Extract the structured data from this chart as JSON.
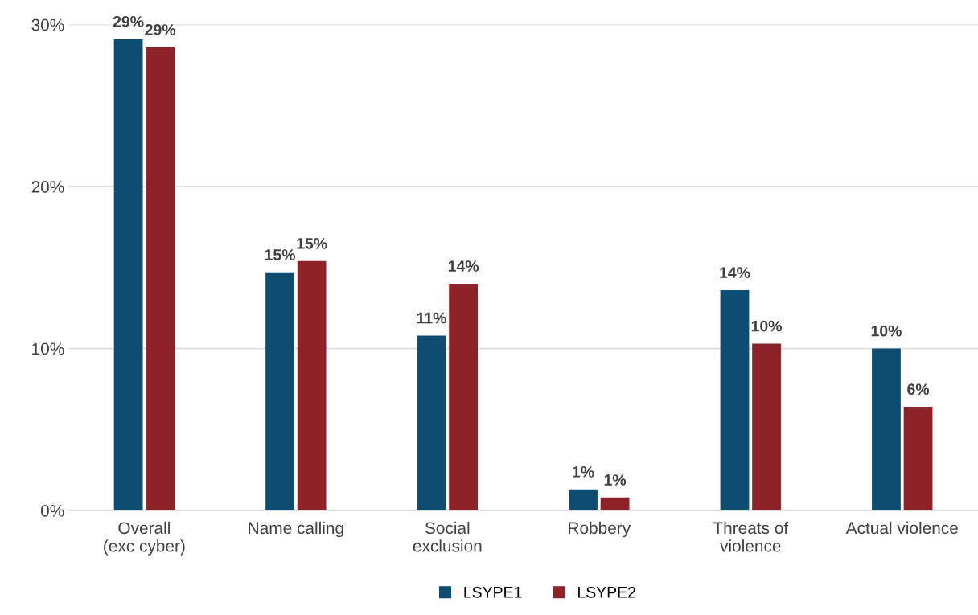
{
  "chart_data": {
    "type": "bar",
    "categories": [
      "Overall\n(exc cyber)",
      "Name calling",
      "Social\nexclusion",
      "Robbery",
      "Threats of\nviolence",
      "Actual violence"
    ],
    "series": [
      {
        "name": "LSYPE1",
        "color": "#0f4c72",
        "values": [
          29.1,
          14.7,
          10.8,
          1.3,
          13.6,
          10.0
        ],
        "value_labels": [
          "29%",
          "15%",
          "11%",
          "1%",
          "14%",
          "10%"
        ]
      },
      {
        "name": "LSYPE2",
        "color": "#8b2329",
        "values": [
          28.6,
          15.4,
          14.0,
          0.8,
          10.3,
          6.4
        ],
        "value_labels": [
          "29%",
          "15%",
          "14%",
          "1%",
          "10%",
          "6%"
        ]
      }
    ],
    "ylim": [
      0,
      30
    ],
    "yticks": [
      {
        "value": 0,
        "label": "0%"
      },
      {
        "value": 10,
        "label": "10%"
      },
      {
        "value": 20,
        "label": "20%"
      },
      {
        "value": 30,
        "label": "30%"
      }
    ],
    "grid": "y",
    "legend": "bottom"
  }
}
